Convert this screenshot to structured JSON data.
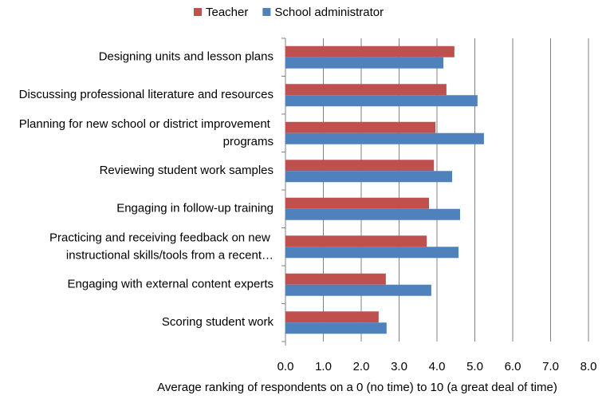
{
  "chart_data": {
    "type": "barh",
    "categories": [
      "Designing units and lesson plans",
      "Discussing professional literature and resources",
      "Planning for new school or district improvement programs",
      "Reviewing student work samples",
      "Engaging in follow-up training",
      "Practicing and receiving feedback on new instructional skills/tools from a recent…",
      "Engaging with external content experts",
      "Scoring student work"
    ],
    "series": [
      {
        "name": "Teacher",
        "color": "#c0504d",
        "values": [
          4.46,
          4.25,
          3.96,
          3.92,
          3.79,
          3.73,
          2.65,
          2.46
        ]
      },
      {
        "name": "School administrator",
        "color": "#4f81bd",
        "values": [
          4.17,
          5.07,
          5.24,
          4.4,
          4.61,
          4.57,
          3.85,
          2.67
        ]
      }
    ],
    "xlabel": "Average ranking of respondents on a 0 (no time) to 10 (a great deal of time)",
    "xlim": [
      0,
      8
    ],
    "xticks": [
      {
        "value": 0,
        "label": "0.0"
      },
      {
        "value": 1,
        "label": "1.0"
      },
      {
        "value": 2,
        "label": "2.0"
      },
      {
        "value": 3,
        "label": "3.0"
      },
      {
        "value": 4,
        "label": "4.0"
      },
      {
        "value": 5,
        "label": "5.0"
      },
      {
        "value": 6,
        "label": "6.0"
      },
      {
        "value": 7,
        "label": "7.0"
      },
      {
        "value": 8,
        "label": "8.0"
      }
    ],
    "grid": true,
    "legend": "top"
  }
}
